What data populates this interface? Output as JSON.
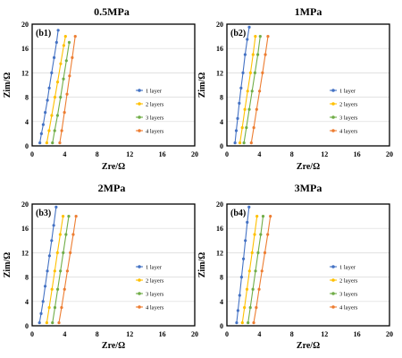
{
  "colors": {
    "1 layer": "#4472c4",
    "2 layers": "#ffc000",
    "3 layers": "#70ad47",
    "4 layers": "#ed7d31",
    "grid": "#d9d9d9",
    "frame": "#000000"
  },
  "chart_data": [
    {
      "type": "line",
      "title": "0.5MPa",
      "panel_label": "(b1)",
      "xlabel": "Zre/Ω",
      "ylabel": "Zim/Ω",
      "xlim": [
        0,
        20
      ],
      "ylim": [
        0,
        20
      ],
      "xticks": [
        0,
        4,
        8,
        12,
        16,
        20
      ],
      "yticks": [
        0,
        4,
        8,
        12,
        16,
        20
      ],
      "grid": "horizontal",
      "legend_position": "right",
      "series": [
        {
          "name": "1 layer",
          "x": [
            0.95,
            1.14,
            1.36,
            1.61,
            1.88,
            2.1,
            2.4,
            2.7,
            3.0,
            3.2
          ],
          "y": [
            0.5,
            2.0,
            3.5,
            5.5,
            7.5,
            9.5,
            12.0,
            14.5,
            17.0,
            19.0
          ]
        },
        {
          "name": "2 layers",
          "x": [
            1.8,
            2.08,
            2.41,
            2.8,
            3.13,
            3.51,
            3.89,
            4.1
          ],
          "y": [
            0.5,
            2.5,
            5.0,
            8.0,
            10.5,
            13.5,
            16.5,
            18.0
          ]
        },
        {
          "name": "3 layers",
          "x": [
            2.5,
            2.77,
            3.12,
            3.49,
            3.85,
            4.21,
            4.56
          ],
          "y": [
            0.5,
            2.5,
            5.0,
            8.0,
            11.0,
            14.0,
            17.0
          ]
        },
        {
          "name": "4 layers",
          "x": [
            3.4,
            3.64,
            3.97,
            4.29,
            4.6,
            4.93,
            5.3
          ],
          "y": [
            0.5,
            2.5,
            5.5,
            8.5,
            11.5,
            14.5,
            18.0
          ]
        }
      ]
    },
    {
      "type": "line",
      "title": "1MPa",
      "panel_label": "(b2)",
      "xlabel": "Zre/Ω",
      "ylabel": "Zim/Ω",
      "xlim": [
        0,
        20
      ],
      "ylim": [
        0,
        20
      ],
      "xticks": [
        0,
        4,
        8,
        12,
        16,
        20
      ],
      "yticks": [
        0,
        4,
        8,
        12,
        16,
        20
      ],
      "grid": "horizontal",
      "legend_position": "right",
      "series": [
        {
          "name": "1 layer",
          "x": [
            1.0,
            1.15,
            1.32,
            1.52,
            1.74,
            1.98,
            2.24,
            2.5,
            2.75
          ],
          "y": [
            0.5,
            2.5,
            4.5,
            7.0,
            9.5,
            12.0,
            15.0,
            17.5,
            19.5
          ]
        },
        {
          "name": "2 layers",
          "x": [
            1.6,
            1.89,
            2.21,
            2.55,
            2.9,
            3.22,
            3.5
          ],
          "y": [
            0.5,
            3.0,
            6.0,
            9.0,
            12.0,
            15.0,
            18.0
          ]
        },
        {
          "name": "3 layers",
          "x": [
            2.1,
            2.4,
            2.75,
            3.1,
            3.45,
            3.8,
            4.1
          ],
          "y": [
            0.5,
            3.0,
            6.0,
            9.0,
            12.0,
            15.0,
            18.0
          ]
        },
        {
          "name": "4 layers",
          "x": [
            3.0,
            3.31,
            3.66,
            4.02,
            4.38,
            4.73,
            5.05
          ],
          "y": [
            0.5,
            3.0,
            6.0,
            9.0,
            12.0,
            15.0,
            18.0
          ]
        }
      ]
    },
    {
      "type": "line",
      "title": "2MPa",
      "panel_label": "(b3)",
      "xlabel": "Zre/Ω",
      "ylabel": "Zim/Ω",
      "xlim": [
        0,
        20
      ],
      "ylim": [
        0,
        20
      ],
      "xticks": [
        0,
        4,
        8,
        12,
        16,
        20
      ],
      "yticks": [
        0,
        4,
        8,
        12,
        16,
        20
      ],
      "grid": "horizontal",
      "legend_position": "right",
      "series": [
        {
          "name": "1 layer",
          "x": [
            0.9,
            1.1,
            1.34,
            1.6,
            1.87,
            2.13,
            2.4,
            2.65,
            2.95
          ],
          "y": [
            0.5,
            2.0,
            4.0,
            6.5,
            9.0,
            11.5,
            14.0,
            16.5,
            19.5
          ]
        },
        {
          "name": "2 layers",
          "x": [
            1.8,
            2.1,
            2.44,
            2.78,
            3.11,
            3.45,
            3.8
          ],
          "y": [
            0.5,
            3.0,
            6.0,
            9.0,
            12.0,
            15.0,
            18.0
          ]
        },
        {
          "name": "3 layers",
          "x": [
            2.5,
            2.8,
            3.14,
            3.48,
            3.82,
            4.16,
            4.5
          ],
          "y": [
            0.5,
            3.0,
            6.0,
            9.0,
            12.0,
            15.0,
            18.0
          ]
        },
        {
          "name": "4 layers",
          "x": [
            3.3,
            3.62,
            3.98,
            4.33,
            4.69,
            5.05,
            5.4
          ],
          "y": [
            0.5,
            3.0,
            6.0,
            9.0,
            12.0,
            15.0,
            18.0
          ]
        }
      ]
    },
    {
      "type": "line",
      "title": "3MPa",
      "panel_label": "(b4)",
      "xlabel": "Zre/Ω",
      "ylabel": "Zim/Ω",
      "xlim": [
        0,
        20
      ],
      "ylim": [
        0,
        20
      ],
      "xticks": [
        0,
        4,
        8,
        12,
        16,
        20
      ],
      "yticks": [
        0,
        4,
        8,
        12,
        16,
        20
      ],
      "grid": "horizontal",
      "legend_position": "right",
      "series": [
        {
          "name": "1 layer",
          "x": [
            1.2,
            1.36,
            1.57,
            1.8,
            2.04,
            2.27,
            2.5,
            2.72
          ],
          "y": [
            0.5,
            2.5,
            5.0,
            8.0,
            11.0,
            14.0,
            17.0,
            19.5
          ]
        },
        {
          "name": "2 layers",
          "x": [
            1.9,
            2.16,
            2.47,
            2.78,
            3.1,
            3.41,
            3.7
          ],
          "y": [
            0.5,
            3.0,
            6.0,
            9.0,
            12.0,
            15.0,
            18.0
          ]
        },
        {
          "name": "3 layers",
          "x": [
            2.6,
            2.88,
            3.2,
            3.52,
            3.84,
            4.16,
            4.45
          ],
          "y": [
            0.5,
            3.0,
            6.0,
            9.0,
            12.0,
            15.0,
            18.0
          ]
        },
        {
          "name": "4 layers",
          "x": [
            3.3,
            3.61,
            3.96,
            4.31,
            4.67,
            5.02,
            5.35
          ],
          "y": [
            0.5,
            3.0,
            6.0,
            9.0,
            12.0,
            15.0,
            18.0
          ]
        }
      ]
    }
  ]
}
